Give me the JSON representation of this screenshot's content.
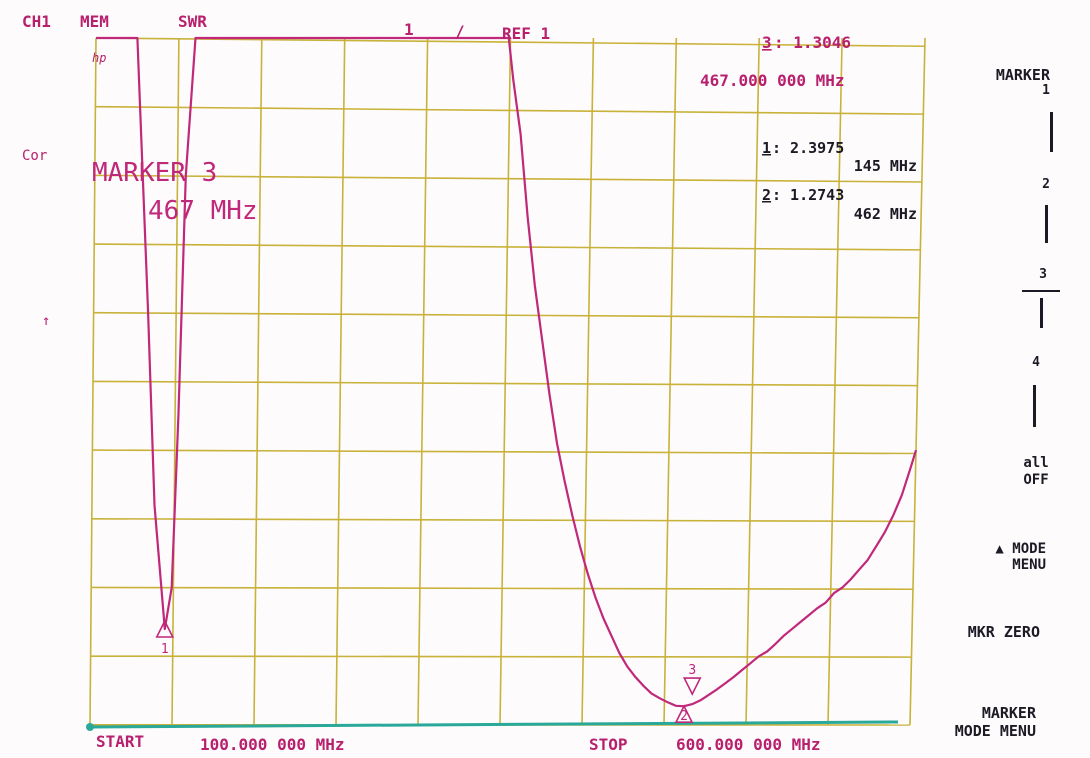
{
  "header": {
    "channel": "CH1",
    "memory": "MEM",
    "format": "SWR",
    "scale": "1",
    "slash": "/",
    "ref": "REF 1",
    "active_marker_label": "3",
    "active_marker_value": ": 1.3046",
    "active_marker_freq": "467.000 000 MHz"
  },
  "left_annotations": {
    "logo": "hp",
    "correction": "Cor",
    "ref_arrow": "↑"
  },
  "overlay": {
    "line1": "MARKER 3",
    "line2": "467 MHz"
  },
  "marker_list": [
    {
      "label": "1",
      "value": ": 2.3975",
      "freq": "145 MHz"
    },
    {
      "label": "2",
      "value": ": 1.2743",
      "freq": "462 MHz"
    }
  ],
  "footer": {
    "start_label": "START",
    "start_value": "100.000 000 MHz",
    "stop_label": "STOP",
    "stop_value": "600.000 000 MHz"
  },
  "softkeys": {
    "title": "MARKER",
    "m1": "1",
    "m2": "2",
    "m3": "3",
    "m4": "4",
    "all_off_1": "all",
    "all_off_2": "OFF",
    "mode_menu_1": "▲ MODE",
    "mode_menu_2": "MENU",
    "mkr_zero": "MKR ZERO",
    "marker_mode_menu_1": "MARKER",
    "marker_mode_menu_2": "MODE MENU"
  },
  "colors": {
    "trace": "#c0287a",
    "grid": "#c9b23a",
    "annotation": "#b8206e",
    "softkey_text": "#1c1a24",
    "baseline": "#2aa89a"
  },
  "chart_data": {
    "type": "line",
    "title": "",
    "xlabel": "",
    "ylabel": "SWR",
    "x_unit": "MHz",
    "xlim": [
      100,
      600
    ],
    "ylim": [
      1,
      11
    ],
    "grid": true,
    "series": [
      {
        "x": [
          100,
          125,
          128,
          133,
          138,
          145,
          149,
          152,
          155,
          160,
          349,
          352,
          357,
          362,
          367,
          372,
          377,
          382,
          387,
          392,
          397,
          402,
          407,
          412,
          417,
          422,
          427,
          432,
          437,
          442,
          447,
          452,
          457,
          462,
          467,
          472,
          477,
          482,
          487,
          492,
          497,
          502,
          507,
          512,
          517,
          522,
          527,
          532,
          537,
          542,
          547,
          552,
          557,
          562,
          567,
          572,
          577,
          582,
          587,
          592,
          597,
          600
        ],
        "y": [
          11,
          11,
          9.5,
          7.0,
          4.2,
          2.3975,
          3.0,
          5.5,
          9,
          11,
          11,
          10.4,
          9.6,
          8.4,
          7.4,
          6.6,
          5.8,
          5.1,
          4.55,
          4.05,
          3.6,
          3.2,
          2.85,
          2.55,
          2.3,
          2.05,
          1.85,
          1.7,
          1.57,
          1.46,
          1.39,
          1.33,
          1.28,
          1.2743,
          1.3046,
          1.36,
          1.44,
          1.52,
          1.61,
          1.7,
          1.8,
          1.9,
          2.0,
          2.07,
          2.18,
          2.3,
          2.4,
          2.5,
          2.6,
          2.7,
          2.78,
          2.92,
          3.0,
          3.12,
          3.26,
          3.4,
          3.6,
          3.8,
          4.05,
          4.35,
          4.75,
          5.0
        ]
      }
    ],
    "markers": [
      {
        "id": "1",
        "x": 145,
        "y": 2.3975
      },
      {
        "id": "2",
        "x": 462,
        "y": 1.2743
      },
      {
        "id": "3",
        "x": 467,
        "y": 1.3046
      }
    ]
  }
}
